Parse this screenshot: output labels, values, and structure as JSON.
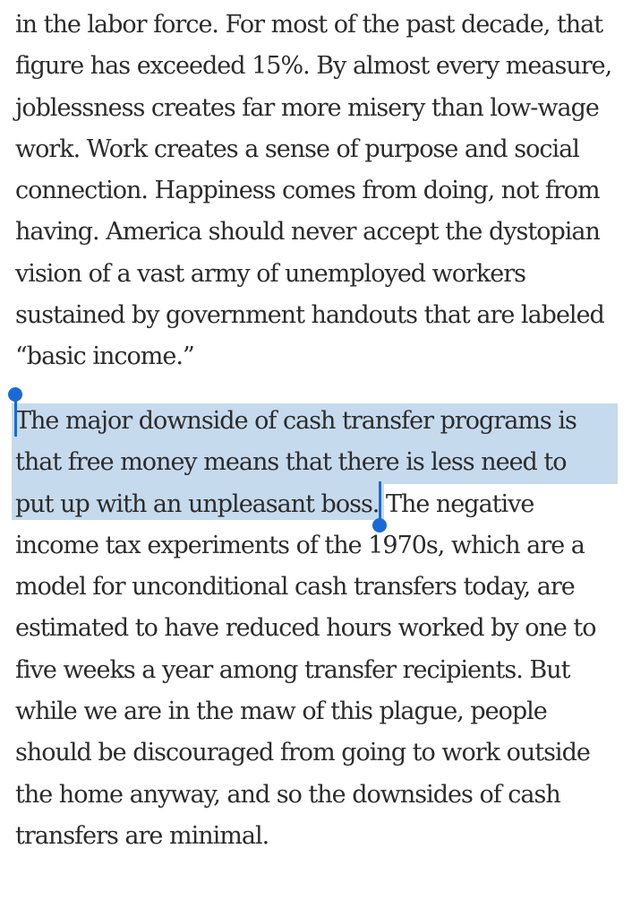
{
  "article": {
    "paragraph1": {
      "lines": [
        "in the labor force. For most of the past decade, that",
        "figure has exceeded 15%. By almost every measure,",
        "joblessness creates far more misery than low-wage",
        "work. Work creates a sense of purpose and social",
        "connection. Happiness comes from doing, not from",
        "having. America should never accept the dystopian",
        "vision of a vast army of unemployed workers",
        "sustained by government handouts that are labeled",
        "“basic income.”"
      ]
    },
    "paragraph2": {
      "selected_lines": [
        "The major downside of cash transfer programs is",
        "that free money means that there is less need to",
        "put up with an unpleasant boss"
      ],
      "line3_rest": ". The negative",
      "lines": [
        "income tax experiments of the 1970s, which are a",
        "model for unconditional cash transfers today, are",
        "estimated to have reduced hours worked by one to",
        "five weeks a year among transfer recipients. But",
        "while we are in the maw of this plague, people",
        "should be discouraged from going to work outside",
        "the home anyway, and so the downsides of cash",
        "transfers are minimal."
      ]
    }
  },
  "colors": {
    "text": "#2b2b2b",
    "selection_highlight": "#c6daed",
    "selection_handle": "#1a6ad6",
    "background": "#ffffff"
  }
}
